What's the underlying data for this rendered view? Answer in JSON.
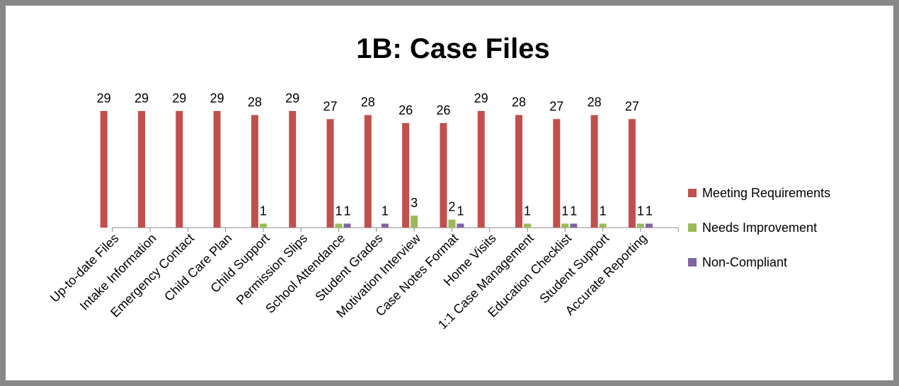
{
  "chart_data": {
    "type": "bar",
    "title": "1B: Case Files",
    "categories": [
      "Up-to-date Files",
      "Intake Information",
      "Emergency Contact",
      "Child Care Plan",
      "Child Support",
      "Permission Slips",
      "School Attendance",
      "Student Grades",
      "Motivation Interview",
      "Case Notes Format",
      "Home Visits",
      "1:1 Case Management",
      "Education Checklist",
      "Student Support",
      "Accurate Reporting"
    ],
    "series": [
      {
        "name": "Meeting Requirements",
        "color": "#c0504d",
        "values": [
          29,
          29,
          29,
          29,
          28,
          29,
          27,
          28,
          26,
          26,
          29,
          28,
          27,
          28,
          27
        ]
      },
      {
        "name": "Needs Improvement",
        "color": "#9bbb59",
        "values": [
          null,
          null,
          null,
          null,
          1,
          null,
          1,
          null,
          3,
          2,
          null,
          1,
          1,
          1,
          1
        ]
      },
      {
        "name": "Non-Compliant",
        "color": "#8064a2",
        "values": [
          null,
          null,
          null,
          null,
          null,
          null,
          1,
          1,
          null,
          1,
          null,
          null,
          1,
          null,
          1
        ]
      }
    ],
    "ylim": [
      0,
      29
    ],
    "legend": "right"
  }
}
